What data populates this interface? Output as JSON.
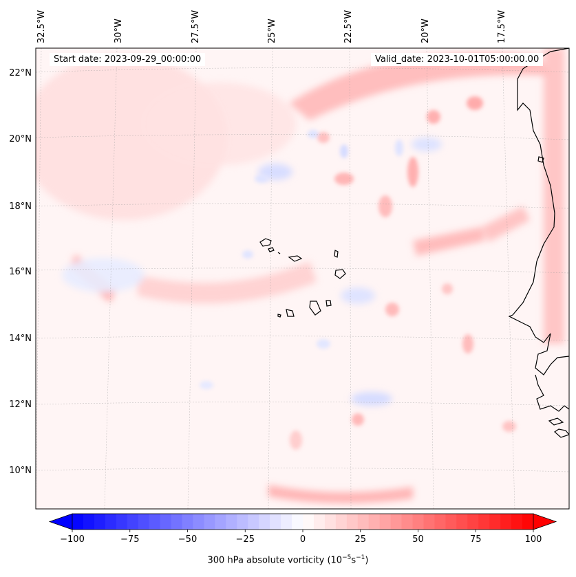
{
  "header": {
    "start_label": "Start date:",
    "start_date": "2023-09-29_00:00:00",
    "valid_label": "Valid_date:",
    "valid_date": "2023-10-01T05:00:00.00"
  },
  "map": {
    "lon_labels": [
      "32.5°W",
      "30°W",
      "27.5°W",
      "25°W",
      "22.5°W",
      "20°W",
      "17.5°W"
    ],
    "lat_labels": [
      "22°N",
      "20°N",
      "18°N",
      "16°N",
      "14°N",
      "12°N",
      "10°N"
    ],
    "lon_values": [
      -32.5,
      -30,
      -27.5,
      -25,
      -22.5,
      -20,
      -17.5
    ],
    "lat_values": [
      22,
      20,
      18,
      16,
      14,
      12,
      10
    ]
  },
  "colorbar": {
    "label_prefix": "300 hPa absolute vorticity (10",
    "label_exp1": "−5",
    "label_mid": "s",
    "label_exp2": "−1",
    "label_suffix": ")",
    "min": -100,
    "max": 100,
    "levels": 42,
    "ticks": [
      -100,
      -75,
      -50,
      -25,
      0,
      25,
      50,
      75,
      100
    ],
    "tick_labels": [
      "−100",
      "−75",
      "−50",
      "−25",
      "0",
      "25",
      "50",
      "75",
      "100"
    ],
    "cmap": "bwr"
  },
  "colors": {
    "negative": "#0000ff",
    "neutral": "#ffffff",
    "positive": "#ff0000",
    "coast": "#000000"
  }
}
